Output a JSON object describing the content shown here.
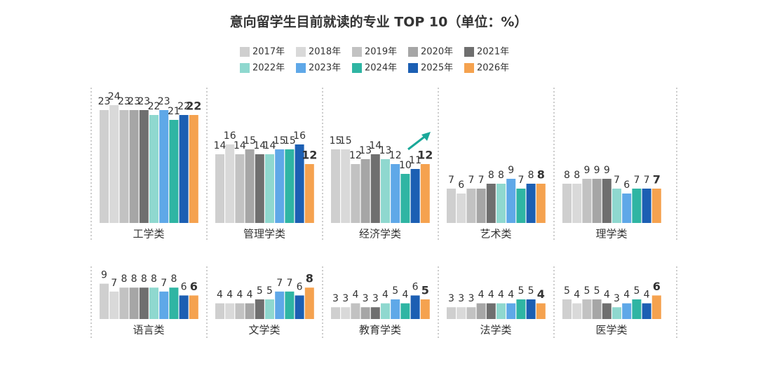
{
  "chart_data": {
    "type": "bar",
    "title": "意向留学生目前就读的专业 TOP 10（单位：%）",
    "categories": [
      "工学类",
      "管理学类",
      "经济学类",
      "艺术类",
      "理学类",
      "语言类",
      "文学类",
      "教育学类",
      "法学类",
      "医学类"
    ],
    "series": [
      {
        "name": "2017年",
        "color": "#cfcfcf",
        "values": [
          23,
          14,
          15,
          7,
          8,
          9,
          4,
          3,
          3,
          5
        ]
      },
      {
        "name": "2018年",
        "color": "#d9d9d9",
        "values": [
          24,
          16,
          15,
          6,
          8,
          7,
          4,
          3,
          3,
          4
        ]
      },
      {
        "name": "2019年",
        "color": "#c2c2c2",
        "values": [
          23,
          14,
          12,
          7,
          9,
          8,
          4,
          4,
          3,
          5
        ]
      },
      {
        "name": "2020年",
        "color": "#a6a6a6",
        "values": [
          23,
          15,
          13,
          7,
          9,
          8,
          4,
          3,
          4,
          5
        ]
      },
      {
        "name": "2021年",
        "color": "#6f6f6f",
        "values": [
          23,
          14,
          14,
          8,
          9,
          8,
          5,
          3,
          4,
          4
        ]
      },
      {
        "name": "2022年",
        "color": "#8fd8cf",
        "values": [
          22,
          14,
          13,
          8,
          7,
          8,
          5,
          4,
          4,
          3
        ]
      },
      {
        "name": "2023年",
        "color": "#5fa8e8",
        "values": [
          23,
          15,
          12,
          9,
          6,
          7,
          7,
          5,
          4,
          4
        ]
      },
      {
        "name": "2024年",
        "color": "#2fb5a3",
        "values": [
          21,
          15,
          10,
          7,
          7,
          8,
          7,
          4,
          5,
          5
        ]
      },
      {
        "name": "2025年",
        "color": "#1c5fb3",
        "values": [
          22,
          16,
          11,
          8,
          7,
          6,
          6,
          6,
          5,
          4
        ]
      },
      {
        "name": "2026年",
        "color": "#f5a24f",
        "values": [
          22,
          12,
          12,
          8,
          7,
          6,
          8,
          5,
          4,
          6
        ]
      }
    ]
  }
}
